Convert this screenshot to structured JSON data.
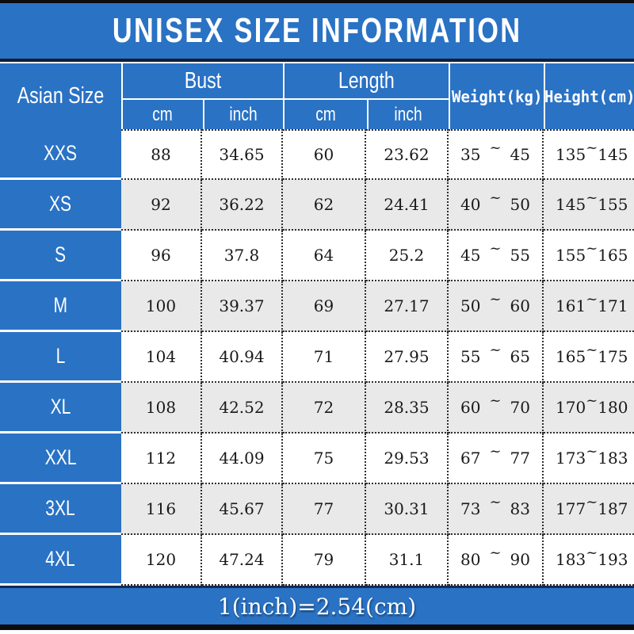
{
  "title": "UNISEX SIZE INFORMATION",
  "note": "1(inch)=2.54(cm)",
  "range_separator": "~",
  "colors": {
    "blue": "#2a72c4",
    "row_alt": "#e9e9e9",
    "navy_line": "#101d33",
    "border_black": "#0b0b10"
  },
  "header": {
    "size_column": "Asian Size",
    "bust": "Bust",
    "length": "Length",
    "bust_cm": "cm",
    "bust_inch": "inch",
    "length_cm": "cm",
    "length_inch": "inch",
    "weight": "Weight(kg)",
    "height": "Height(cm)"
  },
  "rows": [
    {
      "size": "XXS",
      "bust_cm": "88",
      "bust_inch": "34.65",
      "length_cm": "60",
      "length_inch": "23.62",
      "weight_min": "35",
      "weight_max": "45",
      "height_min": "135",
      "height_max": "145"
    },
    {
      "size": "XS",
      "bust_cm": "92",
      "bust_inch": "36.22",
      "length_cm": "62",
      "length_inch": "24.41",
      "weight_min": "40",
      "weight_max": "50",
      "height_min": "145",
      "height_max": "155"
    },
    {
      "size": "S",
      "bust_cm": "96",
      "bust_inch": "37.8",
      "length_cm": "64",
      "length_inch": "25.2",
      "weight_min": "45",
      "weight_max": "55",
      "height_min": "155",
      "height_max": "165"
    },
    {
      "size": "M",
      "bust_cm": "100",
      "bust_inch": "39.37",
      "length_cm": "69",
      "length_inch": "27.17",
      "weight_min": "50",
      "weight_max": "60",
      "height_min": "161",
      "height_max": "171"
    },
    {
      "size": "L",
      "bust_cm": "104",
      "bust_inch": "40.94",
      "length_cm": "71",
      "length_inch": "27.95",
      "weight_min": "55",
      "weight_max": "65",
      "height_min": "165",
      "height_max": "175"
    },
    {
      "size": "XL",
      "bust_cm": "108",
      "bust_inch": "42.52",
      "length_cm": "72",
      "length_inch": "28.35",
      "weight_min": "60",
      "weight_max": "70",
      "height_min": "170",
      "height_max": "180"
    },
    {
      "size": "XXL",
      "bust_cm": "112",
      "bust_inch": "44.09",
      "length_cm": "75",
      "length_inch": "29.53",
      "weight_min": "67",
      "weight_max": "77",
      "height_min": "173",
      "height_max": "183"
    },
    {
      "size": "3XL",
      "bust_cm": "116",
      "bust_inch": "45.67",
      "length_cm": "77",
      "length_inch": "30.31",
      "weight_min": "73",
      "weight_max": "83",
      "height_min": "177",
      "height_max": "187"
    },
    {
      "size": "4XL",
      "bust_cm": "120",
      "bust_inch": "47.24",
      "length_cm": "79",
      "length_inch": "31.1",
      "weight_min": "80",
      "weight_max": "90",
      "height_min": "183",
      "height_max": "193"
    }
  ],
  "chart_data": {
    "type": "table",
    "title": "UNISEX SIZE INFORMATION",
    "columns": [
      "Asian Size",
      "Bust cm",
      "Bust inch",
      "Length cm",
      "Length inch",
      "Weight (kg)",
      "Height (cm)"
    ],
    "rows": [
      [
        "XXS",
        "88",
        "34.65",
        "60",
        "23.62",
        "35~45",
        "135~145"
      ],
      [
        "XS",
        "92",
        "36.22",
        "62",
        "24.41",
        "40~50",
        "145~155"
      ],
      [
        "S",
        "96",
        "37.8",
        "64",
        "25.2",
        "45~55",
        "155~165"
      ],
      [
        "M",
        "100",
        "39.37",
        "69",
        "27.17",
        "50~60",
        "161~171"
      ],
      [
        "L",
        "104",
        "40.94",
        "71",
        "27.95",
        "55~65",
        "165~175"
      ],
      [
        "XL",
        "108",
        "42.52",
        "72",
        "28.35",
        "60~70",
        "170~180"
      ],
      [
        "XXL",
        "112",
        "44.09",
        "75",
        "29.53",
        "67~77",
        "173~183"
      ],
      [
        "3XL",
        "116",
        "45.67",
        "77",
        "30.31",
        "73~83",
        "177~187"
      ],
      [
        "4XL",
        "120",
        "47.24",
        "79",
        "31.1",
        "80~90",
        "183~193"
      ]
    ],
    "note": "1(inch)=2.54(cm)"
  }
}
